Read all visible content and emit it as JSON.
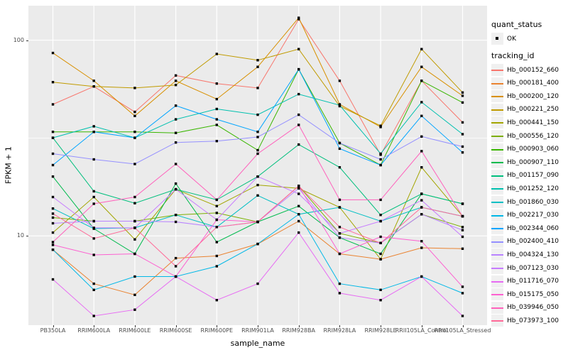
{
  "chart_data": {
    "type": "line",
    "title": "",
    "xlabel": "sample_name",
    "ylabel": "FPKM + 1",
    "yscale": "log10",
    "ylim": [
      3.5,
      150
    ],
    "y_ticks": [
      100,
      10
    ],
    "y_minor_breaks": [
      31.6
    ],
    "grid": true,
    "panel_bg": "#EBEBEB",
    "grid_color": "#FFFFFF",
    "point_shape": "square",
    "point_color": "#000000",
    "legend_position": "right",
    "categories": [
      "PB350LA",
      "RRIM600LA",
      "RRIM600LE",
      "RRIM600SE",
      "RRIM600PE",
      "RRIM901LA",
      "RRIM928BA",
      "RRIM928LA",
      "RRIM928LE",
      "RRII105LA_Control",
      "RRII105LA_Stressed"
    ],
    "series": [
      {
        "name": "Hb_000152_660",
        "color": "#F8766D",
        "values": [
          47,
          58,
          43,
          66,
          60,
          57,
          128,
          62,
          26,
          62,
          38
        ]
      },
      {
        "name": "Hb_000181_400",
        "color": "#EA8331",
        "values": [
          8.5,
          5.7,
          5.0,
          7.7,
          7.9,
          9.1,
          11.9,
          8.1,
          7.6,
          8.7,
          8.6
        ]
      },
      {
        "name": "Hb_000200_120",
        "color": "#D89000",
        "values": [
          86,
          62,
          41,
          62,
          50,
          73,
          130,
          47,
          36,
          73,
          52
        ]
      },
      {
        "name": "Hb_000221_250",
        "color": "#C09B00",
        "values": [
          61,
          58,
          57,
          59,
          85,
          79,
          90,
          46,
          36.5,
          90,
          54
        ]
      },
      {
        "name": "Hb_000441_150",
        "color": "#A3A500",
        "values": [
          10.4,
          15.8,
          9.6,
          17.3,
          14.2,
          18.2,
          17.5,
          14.0,
          7.6,
          22.4,
          12.6
        ]
      },
      {
        "name": "Hb_000556_120",
        "color": "#7CAE00",
        "values": [
          12.4,
          11.9,
          11.9,
          12.8,
          13.1,
          11.8,
          18.0,
          10.3,
          9.2,
          12.9,
          11.1
        ]
      },
      {
        "name": "Hb_000903_060",
        "color": "#39B600",
        "values": [
          34,
          34,
          34,
          33.6,
          36.9,
          27.4,
          71,
          29.8,
          23,
          62,
          48
        ]
      },
      {
        "name": "Hb_000907_110",
        "color": "#00BB4E",
        "values": [
          20.1,
          10.9,
          8.1,
          18.5,
          9.3,
          11.8,
          14.2,
          9.8,
          8.1,
          16.4,
          14.6
        ]
      },
      {
        "name": "Hb_001157_090",
        "color": "#00BF7D",
        "values": [
          31.7,
          16.9,
          14.7,
          17.3,
          15.3,
          20.1,
          29.3,
          22.4,
          12.8,
          16.4,
          14.6
        ]
      },
      {
        "name": "Hb_001252_120",
        "color": "#00C0AF",
        "values": [
          31.7,
          36.3,
          31.7,
          39.4,
          44.5,
          41.6,
          53,
          46.5,
          26.3,
          48.2,
          33.1
        ]
      },
      {
        "name": "Hb_001860_030",
        "color": "#00BFC4",
        "values": [
          13.8,
          10.9,
          11.0,
          12.8,
          11.1,
          16.1,
          12.9,
          14.0,
          11.9,
          14.0,
          12.6
        ]
      },
      {
        "name": "Hb_002217_030",
        "color": "#00B8E7",
        "values": [
          8.5,
          5.3,
          6.2,
          6.2,
          7.0,
          9.1,
          12.9,
          5.7,
          5.3,
          6.2,
          5.1
        ]
      },
      {
        "name": "Hb_002344_060",
        "color": "#00A5FF",
        "values": [
          23,
          34,
          31.7,
          46.3,
          39.4,
          34,
          71,
          27.9,
          23,
          41,
          26.7
        ]
      },
      {
        "name": "Hb_002400_410",
        "color": "#9590FF",
        "values": [
          26.3,
          24.6,
          23.3,
          30,
          30.5,
          32,
          41.6,
          29.8,
          24.6,
          32.2,
          28.6
        ]
      },
      {
        "name": "Hb_004324_130",
        "color": "#B983FF",
        "values": [
          11.6,
          11.9,
          11.9,
          11.8,
          11.1,
          11.8,
          17.5,
          9.8,
          9.2,
          12.9,
          10.7
        ]
      },
      {
        "name": "Hb_007123_030",
        "color": "#C77CFF",
        "values": [
          15.8,
          11.0,
          11.0,
          17.3,
          12.1,
          20.1,
          16.4,
          10.3,
          11.9,
          15.2,
          9.9
        ]
      },
      {
        "name": "Hb_011716_070",
        "color": "#E76BF3",
        "values": [
          6.0,
          3.9,
          4.2,
          6.2,
          4.7,
          5.7,
          10.4,
          5.1,
          4.7,
          6.2,
          3.9
        ]
      },
      {
        "name": "Hb_015175_050",
        "color": "#FD61D1",
        "values": [
          9.0,
          8.0,
          8.1,
          6.2,
          12.1,
          11.8,
          18.0,
          8.1,
          9.9,
          9.4,
          5.5
        ]
      },
      {
        "name": "Hb_039946_050",
        "color": "#FF62BC",
        "values": [
          9.3,
          14.6,
          15.8,
          23.3,
          15.3,
          26.3,
          36.9,
          15.3,
          15.3,
          27.1,
          12.6
        ]
      },
      {
        "name": "Hb_073973_100",
        "color": "#FF6A98",
        "values": [
          13.0,
          9.7,
          11.0,
          7.0,
          11.1,
          11.8,
          18.0,
          11.1,
          9.2,
          14.0,
          12.6
        ]
      }
    ]
  },
  "legend": {
    "quant_status_title": "quant_status",
    "quant_status_items": [
      {
        "label": "OK"
      }
    ],
    "tracking_title": "tracking_id"
  }
}
